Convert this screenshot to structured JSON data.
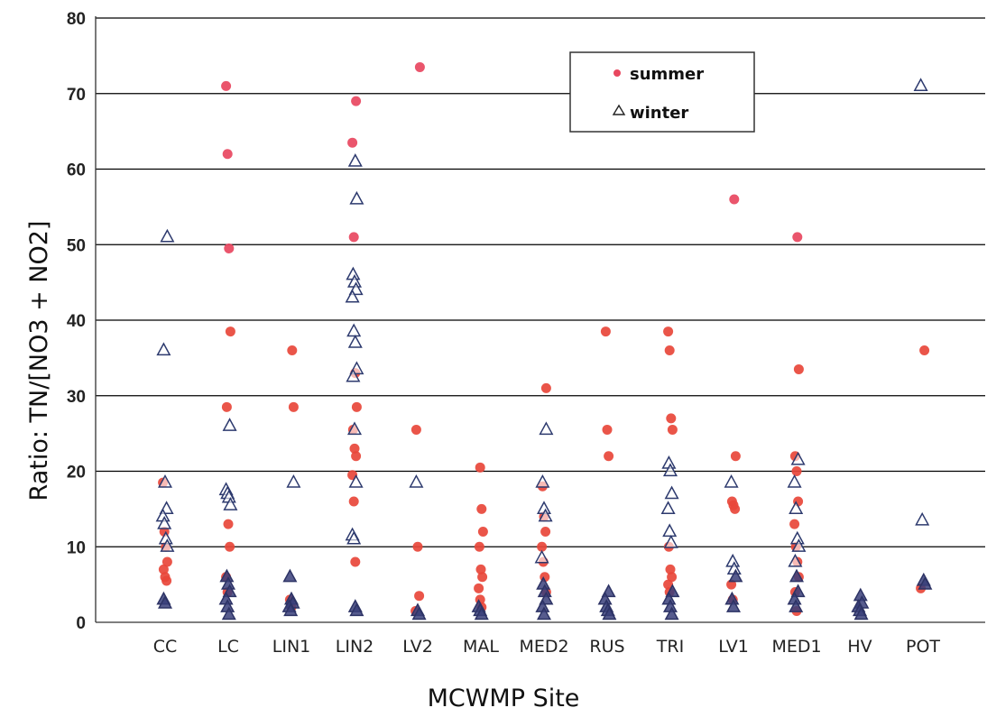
{
  "chart_data": {
    "type": "scatter",
    "xlabel": "MCWMP Site",
    "ylabel": "Ratio:  TN/[NO3 + NO2]",
    "ylim": [
      0,
      80
    ],
    "yticks": [
      0,
      10,
      20,
      30,
      40,
      50,
      60,
      70,
      80
    ],
    "grid": "horizontal",
    "legend_position": "top-right",
    "categories": [
      "CC",
      "LC",
      "LIN1",
      "LIN2",
      "LV2",
      "MAL",
      "MED2",
      "RUS",
      "TRI",
      "LV1",
      "MED1",
      "HV",
      "POT"
    ],
    "series": [
      {
        "name": "summer",
        "marker": "circle",
        "color": "#e8473a",
        "points": [
          {
            "x": "CC",
            "y": 18.5
          },
          {
            "x": "CC",
            "y": 12
          },
          {
            "x": "CC",
            "y": 10
          },
          {
            "x": "CC",
            "y": 8
          },
          {
            "x": "CC",
            "y": 7
          },
          {
            "x": "CC",
            "y": 6
          },
          {
            "x": "CC",
            "y": 5.5
          },
          {
            "x": "LC",
            "y": 71
          },
          {
            "x": "LC",
            "y": 62
          },
          {
            "x": "LC",
            "y": 49.5
          },
          {
            "x": "LC",
            "y": 38.5
          },
          {
            "x": "LC",
            "y": 28.5
          },
          {
            "x": "LC",
            "y": 13
          },
          {
            "x": "LC",
            "y": 10
          },
          {
            "x": "LC",
            "y": 6
          },
          {
            "x": "LC",
            "y": 4
          },
          {
            "x": "LIN1",
            "y": 36
          },
          {
            "x": "LIN1",
            "y": 28.5
          },
          {
            "x": "LIN1",
            "y": 3
          },
          {
            "x": "LIN1",
            "y": 2
          },
          {
            "x": "LIN2",
            "y": 69
          },
          {
            "x": "LIN2",
            "y": 63.5
          },
          {
            "x": "LIN2",
            "y": 51
          },
          {
            "x": "LIN2",
            "y": 33
          },
          {
            "x": "LIN2",
            "y": 28.5
          },
          {
            "x": "LIN2",
            "y": 25.5
          },
          {
            "x": "LIN2",
            "y": 23
          },
          {
            "x": "LIN2",
            "y": 22
          },
          {
            "x": "LIN2",
            "y": 19.5
          },
          {
            "x": "LIN2",
            "y": 16
          },
          {
            "x": "LIN2",
            "y": 8
          },
          {
            "x": "LV2",
            "y": 73.5
          },
          {
            "x": "LV2",
            "y": 25.5
          },
          {
            "x": "LV2",
            "y": 10
          },
          {
            "x": "LV2",
            "y": 3.5
          },
          {
            "x": "LV2",
            "y": 1.5
          },
          {
            "x": "MAL",
            "y": 20.5
          },
          {
            "x": "MAL",
            "y": 15
          },
          {
            "x": "MAL",
            "y": 12
          },
          {
            "x": "MAL",
            "y": 10
          },
          {
            "x": "MAL",
            "y": 7
          },
          {
            "x": "MAL",
            "y": 6
          },
          {
            "x": "MAL",
            "y": 4.5
          },
          {
            "x": "MAL",
            "y": 3
          },
          {
            "x": "MAL",
            "y": 2
          },
          {
            "x": "MED2",
            "y": 31
          },
          {
            "x": "MED2",
            "y": 18
          },
          {
            "x": "MED2",
            "y": 14
          },
          {
            "x": "MED2",
            "y": 12
          },
          {
            "x": "MED2",
            "y": 10
          },
          {
            "x": "MED2",
            "y": 8
          },
          {
            "x": "MED2",
            "y": 6
          },
          {
            "x": "MED2",
            "y": 4
          },
          {
            "x": "RUS",
            "y": 38.5
          },
          {
            "x": "RUS",
            "y": 25.5
          },
          {
            "x": "RUS",
            "y": 22
          },
          {
            "x": "TRI",
            "y": 38.5
          },
          {
            "x": "TRI",
            "y": 36
          },
          {
            "x": "TRI",
            "y": 27
          },
          {
            "x": "TRI",
            "y": 25.5
          },
          {
            "x": "TRI",
            "y": 10
          },
          {
            "x": "TRI",
            "y": 7
          },
          {
            "x": "TRI",
            "y": 6
          },
          {
            "x": "TRI",
            "y": 5
          },
          {
            "x": "TRI",
            "y": 4
          },
          {
            "x": "LV1",
            "y": 56
          },
          {
            "x": "LV1",
            "y": 22
          },
          {
            "x": "LV1",
            "y": 16
          },
          {
            "x": "LV1",
            "y": 15.5
          },
          {
            "x": "LV1",
            "y": 15
          },
          {
            "x": "LV1",
            "y": 5
          },
          {
            "x": "LV1",
            "y": 3
          },
          {
            "x": "MED1",
            "y": 51
          },
          {
            "x": "MED1",
            "y": 33.5
          },
          {
            "x": "MED1",
            "y": 22
          },
          {
            "x": "MED1",
            "y": 20
          },
          {
            "x": "MED1",
            "y": 16
          },
          {
            "x": "MED1",
            "y": 13
          },
          {
            "x": "MED1",
            "y": 10
          },
          {
            "x": "MED1",
            "y": 8
          },
          {
            "x": "MED1",
            "y": 6
          },
          {
            "x": "MED1",
            "y": 4
          },
          {
            "x": "MED1",
            "y": 1.5
          },
          {
            "x": "POT",
            "y": 36
          },
          {
            "x": "POT",
            "y": 4.5
          }
        ]
      },
      {
        "name": "winter",
        "marker": "triangle",
        "color": "#2d3a6e",
        "points": [
          {
            "x": "CC",
            "y": 51
          },
          {
            "x": "CC",
            "y": 36
          },
          {
            "x": "CC",
            "y": 18.5
          },
          {
            "x": "CC",
            "y": 15
          },
          {
            "x": "CC",
            "y": 14
          },
          {
            "x": "CC",
            "y": 13
          },
          {
            "x": "CC",
            "y": 11
          },
          {
            "x": "CC",
            "y": 10
          },
          {
            "x": "CC",
            "y": 3
          },
          {
            "x": "CC",
            "y": 2.5
          },
          {
            "x": "LC",
            "y": 26
          },
          {
            "x": "LC",
            "y": 17.5
          },
          {
            "x": "LC",
            "y": 17
          },
          {
            "x": "LC",
            "y": 16.5
          },
          {
            "x": "LC",
            "y": 15.5
          },
          {
            "x": "LC",
            "y": 6
          },
          {
            "x": "LC",
            "y": 5
          },
          {
            "x": "LC",
            "y": 4
          },
          {
            "x": "LC",
            "y": 3
          },
          {
            "x": "LC",
            "y": 2
          },
          {
            "x": "LC",
            "y": 1
          },
          {
            "x": "LIN1",
            "y": 18.5
          },
          {
            "x": "LIN1",
            "y": 6
          },
          {
            "x": "LIN1",
            "y": 3
          },
          {
            "x": "LIN1",
            "y": 2.5
          },
          {
            "x": "LIN1",
            "y": 2
          },
          {
            "x": "LIN1",
            "y": 1.5
          },
          {
            "x": "LIN2",
            "y": 61
          },
          {
            "x": "LIN2",
            "y": 56
          },
          {
            "x": "LIN2",
            "y": 46
          },
          {
            "x": "LIN2",
            "y": 45
          },
          {
            "x": "LIN2",
            "y": 44
          },
          {
            "x": "LIN2",
            "y": 43
          },
          {
            "x": "LIN2",
            "y": 38.5
          },
          {
            "x": "LIN2",
            "y": 37
          },
          {
            "x": "LIN2",
            "y": 33.5
          },
          {
            "x": "LIN2",
            "y": 32.5
          },
          {
            "x": "LIN2",
            "y": 25.5
          },
          {
            "x": "LIN2",
            "y": 18.5
          },
          {
            "x": "LIN2",
            "y": 11.5
          },
          {
            "x": "LIN2",
            "y": 11
          },
          {
            "x": "LIN2",
            "y": 2
          },
          {
            "x": "LIN2",
            "y": 1.5
          },
          {
            "x": "LV2",
            "y": 18.5
          },
          {
            "x": "LV2",
            "y": 1.5
          },
          {
            "x": "LV2",
            "y": 1
          },
          {
            "x": "MAL",
            "y": 2
          },
          {
            "x": "MAL",
            "y": 1.5
          },
          {
            "x": "MAL",
            "y": 1
          },
          {
            "x": "MED2",
            "y": 25.5
          },
          {
            "x": "MED2",
            "y": 18.5
          },
          {
            "x": "MED2",
            "y": 15
          },
          {
            "x": "MED2",
            "y": 14
          },
          {
            "x": "MED2",
            "y": 8.5
          },
          {
            "x": "MED2",
            "y": 5
          },
          {
            "x": "MED2",
            "y": 4
          },
          {
            "x": "MED2",
            "y": 3
          },
          {
            "x": "MED2",
            "y": 2
          },
          {
            "x": "MED2",
            "y": 1
          },
          {
            "x": "RUS",
            "y": 4
          },
          {
            "x": "RUS",
            "y": 3
          },
          {
            "x": "RUS",
            "y": 2
          },
          {
            "x": "RUS",
            "y": 1.5
          },
          {
            "x": "RUS",
            "y": 1
          },
          {
            "x": "TRI",
            "y": 21
          },
          {
            "x": "TRI",
            "y": 20
          },
          {
            "x": "TRI",
            "y": 17
          },
          {
            "x": "TRI",
            "y": 15
          },
          {
            "x": "TRI",
            "y": 12
          },
          {
            "x": "TRI",
            "y": 10.5
          },
          {
            "x": "TRI",
            "y": 4
          },
          {
            "x": "TRI",
            "y": 3
          },
          {
            "x": "TRI",
            "y": 2
          },
          {
            "x": "TRI",
            "y": 1
          },
          {
            "x": "LV1",
            "y": 18.5
          },
          {
            "x": "LV1",
            "y": 8
          },
          {
            "x": "LV1",
            "y": 7
          },
          {
            "x": "LV1",
            "y": 6
          },
          {
            "x": "LV1",
            "y": 3
          },
          {
            "x": "LV1",
            "y": 2
          },
          {
            "x": "MED1",
            "y": 21.5
          },
          {
            "x": "MED1",
            "y": 18.5
          },
          {
            "x": "MED1",
            "y": 15
          },
          {
            "x": "MED1",
            "y": 11
          },
          {
            "x": "MED1",
            "y": 10
          },
          {
            "x": "MED1",
            "y": 8
          },
          {
            "x": "MED1",
            "y": 6
          },
          {
            "x": "MED1",
            "y": 4
          },
          {
            "x": "MED1",
            "y": 3
          },
          {
            "x": "MED1",
            "y": 2
          },
          {
            "x": "HV",
            "y": 3.5
          },
          {
            "x": "HV",
            "y": 2.5
          },
          {
            "x": "HV",
            "y": 2
          },
          {
            "x": "HV",
            "y": 1.5
          },
          {
            "x": "HV",
            "y": 1
          },
          {
            "x": "POT",
            "y": 71
          },
          {
            "x": "POT",
            "y": 13.5
          },
          {
            "x": "POT",
            "y": 5.5
          },
          {
            "x": "POT",
            "y": 5
          }
        ]
      }
    ]
  }
}
